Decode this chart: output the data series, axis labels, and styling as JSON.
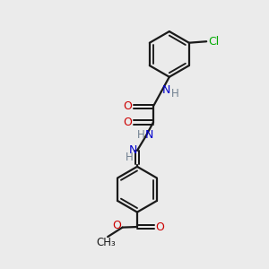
{
  "bg_color": "#ebebeb",
  "bond_color": "#1a1a1a",
  "N_color": "#0000cd",
  "O_color": "#cc0000",
  "Cl_color": "#00aa00",
  "H_color": "#708090",
  "line_width": 1.6,
  "fig_w": 3.0,
  "fig_h": 3.0,
  "dpi": 100,
  "xlim": [
    0,
    10
  ],
  "ylim": [
    0,
    10
  ]
}
